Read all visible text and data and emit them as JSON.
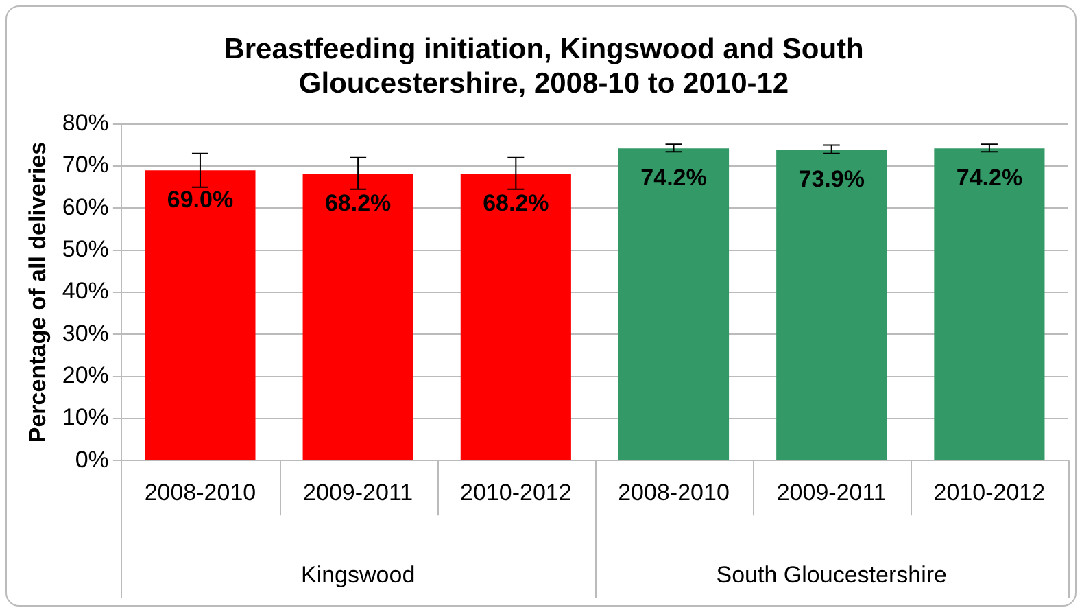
{
  "chart_data": {
    "type": "bar",
    "title": "Breastfeeding initiation, Kingswood and South Gloucestershire, 2008-10 to 2010-12",
    "ylabel": "Percentage of all deliveries",
    "categories": [
      "2008-2010",
      "2009-2011",
      "2010-2012",
      "2008-2010",
      "2009-2011",
      "2010-2012"
    ],
    "series": [
      {
        "color": "#ff0000",
        "values": [
          69.0,
          68.2,
          68.2,
          null,
          null,
          null
        ],
        "value_labels": [
          "69.0%",
          "68.2%",
          "68.2%",
          null,
          null,
          null
        ],
        "errors": [
          [
            65.0,
            73.0
          ],
          [
            64.5,
            72.0
          ],
          [
            64.5,
            72.0
          ],
          null,
          null,
          null
        ]
      },
      {
        "color": "#339966",
        "values": [
          null,
          null,
          null,
          74.2,
          73.9,
          74.2
        ],
        "value_labels": [
          null,
          null,
          null,
          "74.2%",
          "73.9%",
          "74.2%"
        ],
        "errors": [
          null,
          null,
          null,
          [
            73.4,
            75.2
          ],
          [
            73.0,
            75.0
          ],
          [
            73.4,
            75.2
          ]
        ]
      }
    ],
    "ylim": [
      0,
      80
    ],
    "yticks": [
      {
        "value": 0,
        "label": "0%"
      },
      {
        "value": 10,
        "label": "10%"
      },
      {
        "value": 20,
        "label": "20%"
      },
      {
        "value": 30,
        "label": "30%"
      },
      {
        "value": 40,
        "label": "40%"
      },
      {
        "value": 50,
        "label": "50%"
      },
      {
        "value": 60,
        "label": "60%"
      },
      {
        "value": 70,
        "label": "70%"
      },
      {
        "value": 80,
        "label": "80%"
      }
    ],
    "annotations": [
      "Kingswood",
      "South Gloucestershire"
    ],
    "grid": "y",
    "legend": false
  }
}
